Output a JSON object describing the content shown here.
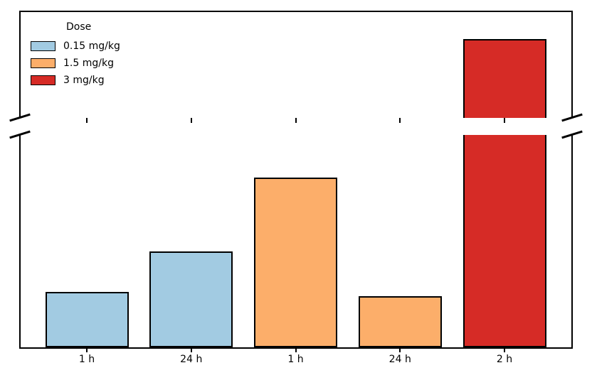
{
  "chart_data": {
    "type": "bar",
    "title": "",
    "xlabel": "",
    "ylabel": "",
    "categories": [
      "1 h",
      "24 h",
      "1 h",
      "24 h",
      "2 h"
    ],
    "bars": [
      {
        "category": "1 h",
        "dose": "0.15 mg/kg",
        "value_rel": 0.26,
        "crosses_break": false,
        "upper_panel_fill_rel": 0
      },
      {
        "category": "24 h",
        "dose": "0.15 mg/kg",
        "value_rel": 0.45,
        "crosses_break": false,
        "upper_panel_fill_rel": 0
      },
      {
        "category": "1 h",
        "dose": "1.5 mg/kg",
        "value_rel": 0.8,
        "crosses_break": false,
        "upper_panel_fill_rel": 0
      },
      {
        "category": "24 h",
        "dose": "1.5 mg/kg",
        "value_rel": 0.24,
        "crosses_break": false,
        "upper_panel_fill_rel": 0
      },
      {
        "category": "2 h",
        "dose": "3 mg/kg",
        "value_rel": 1.0,
        "crosses_break": true,
        "upper_panel_fill_rel": 0.74
      }
    ],
    "dose_colors": {
      "0.15 mg/kg": "#a2cbe2",
      "1.5 mg/kg": "#fcae6a",
      "3 mg/kg": "#d62b26"
    },
    "legend": {
      "title": "Dose",
      "position": "upper left",
      "entries": [
        {
          "label": "0.15 mg/kg",
          "color": "#a2cbe2"
        },
        {
          "label": "1.5 mg/kg",
          "color": "#fcae6a"
        },
        {
          "label": "3 mg/kg",
          "color": "#d62b26"
        }
      ]
    },
    "y_axis": {
      "broken": true,
      "tick_labels_visible": false,
      "note": "no numeric y-axis labels shown; values are relative bar heights, red bar exceeds the axis break"
    },
    "edge_color": "#000000"
  }
}
